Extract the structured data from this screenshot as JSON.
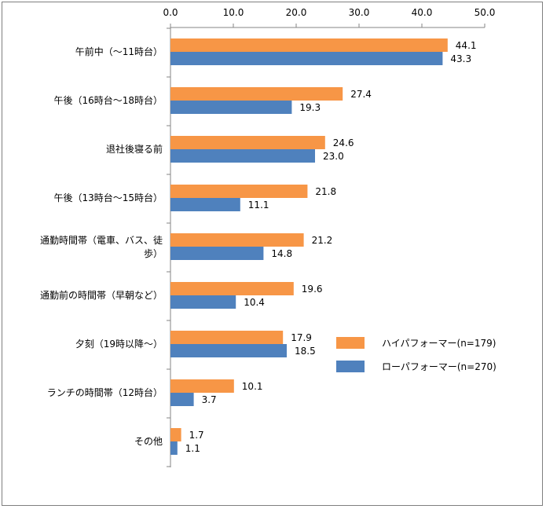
{
  "chart_data": {
    "type": "bar",
    "orientation": "horizontal",
    "title": "",
    "xlabel": "",
    "ylabel": "",
    "xlim": [
      0,
      50
    ],
    "xticks": [
      "0.0",
      "10.0",
      "20.0",
      "30.0",
      "40.0",
      "50.0"
    ],
    "xaxis_position": "top",
    "grid": false,
    "legend_position": "right-middle",
    "categories": [
      [
        "午前中（～11時台）"
      ],
      [
        "午後（16時台～18時台）"
      ],
      [
        "退社後寝る前"
      ],
      [
        "午後（13時台～15時台）"
      ],
      [
        "通勤時間帯（電車、バス、徒",
        "歩）"
      ],
      [
        "通勤前の時間帯（早朝など）"
      ],
      [
        "夕刻（19時以降～）"
      ],
      [
        "ランチの時間帯（12時台）"
      ],
      [
        "その他"
      ]
    ],
    "series": [
      {
        "name": "ハイパフォーマー(n=179)",
        "color": "#f79646",
        "values": [
          44.1,
          27.4,
          24.6,
          21.8,
          21.2,
          19.6,
          17.9,
          10.1,
          1.7
        ]
      },
      {
        "name": "ローパフォーマー(n=270)",
        "color": "#4f81bd",
        "values": [
          43.3,
          19.3,
          23.0,
          11.1,
          14.8,
          10.4,
          18.5,
          3.7,
          1.1
        ]
      }
    ]
  }
}
